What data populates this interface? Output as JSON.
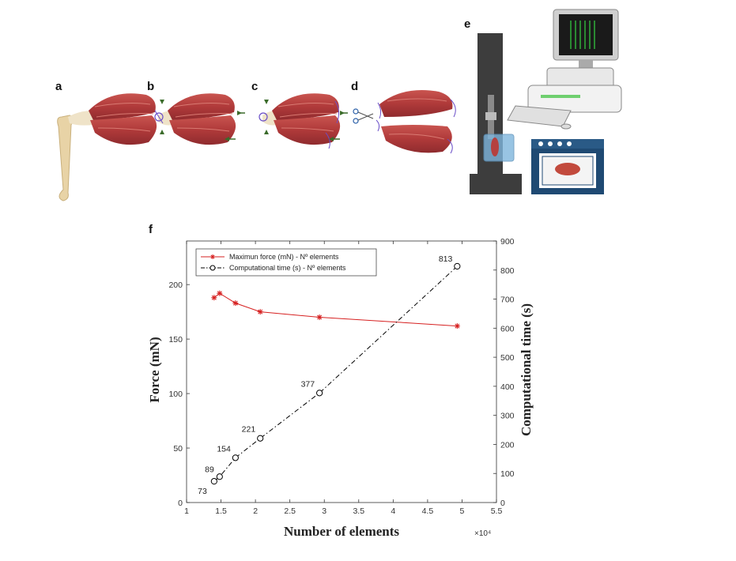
{
  "panels": {
    "a": "a",
    "b": "b",
    "c": "c",
    "d": "d",
    "e": "e",
    "f": "f"
  },
  "colors": {
    "muscle": "#b5403f",
    "muscle_light": "#d97a72",
    "tendon": "#efe3c8",
    "bone": "#e8d3a6",
    "arrow": "#3a6b2a",
    "suture": "#6a4fc8",
    "machine": "#3d3d3d",
    "bath": "#7fb6dd",
    "oven": "#1f4a73",
    "force_series": "#d62020",
    "time_series": "#000000"
  },
  "chart_data": {
    "type": "line",
    "xlabel": "Number of elements",
    "x_multiplier_label": "×10⁴",
    "ylabel_left": "Force (mN)",
    "ylabel_right": "Computational time (s)",
    "xlim": [
      1,
      5.5
    ],
    "ylim_left": [
      0,
      240
    ],
    "ylim_right": [
      0,
      900
    ],
    "xticks": [
      "1",
      "1.5",
      "2",
      "2.5",
      "3",
      "3.5",
      "4",
      "4.5",
      "5",
      "5.5"
    ],
    "xtick_values": [
      1,
      1.5,
      2,
      2.5,
      3,
      3.5,
      4,
      4.5,
      5,
      5.5
    ],
    "yticks_left": [
      0,
      50,
      100,
      150,
      200
    ],
    "yticks_right": [
      0,
      100,
      200,
      300,
      400,
      500,
      600,
      700,
      800,
      900
    ],
    "legend": {
      "placement": "top-left",
      "entries": [
        "Maximun force (mN) - Nº elements",
        "Computational time (s) - Nº elements"
      ]
    },
    "series": [
      {
        "name": "Maximun force (mN) - Nº elements",
        "axis": "left",
        "marker": "asterisk",
        "line": "solid",
        "x": [
          1.4,
          1.48,
          1.71,
          2.07,
          2.93,
          4.93
        ],
        "y": [
          188,
          192,
          183,
          175,
          170,
          162
        ]
      },
      {
        "name": "Computational time (s) - Nº elements",
        "axis": "right",
        "marker": "circle",
        "line": "dash-dot",
        "x": [
          1.4,
          1.48,
          1.71,
          2.07,
          2.93,
          4.93
        ],
        "y": [
          73,
          89,
          154,
          221,
          377,
          813
        ],
        "labels": [
          "73",
          "89",
          "154",
          "221",
          "377",
          "813"
        ]
      }
    ]
  }
}
